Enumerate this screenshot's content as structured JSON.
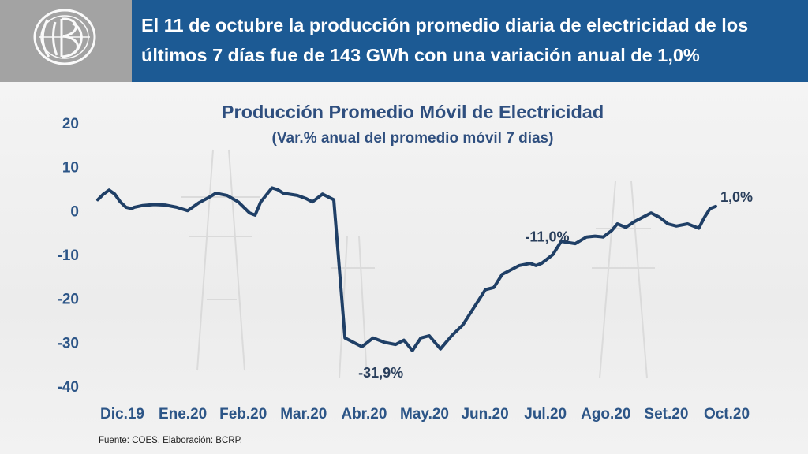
{
  "header": {
    "headline": "El 11 de octubre la producción promedio diaria de electricidad de los últimos 7 días fue de 143 GWh con una variación anual de 1,0%"
  },
  "logo": {
    "icon": "bcrp-monogram-icon"
  },
  "source": "Fuente: COES. Elaboración: BCRP.",
  "chart_data": {
    "type": "line",
    "title": "Producción Promedio Móvil de Electricidad",
    "subtitle": "(Var.% anual del promedio móvil 7 días)",
    "xlabel": "",
    "ylabel": "",
    "ylim": [
      -40,
      20
    ],
    "yticks": [
      20,
      10,
      0,
      -10,
      -20,
      -30,
      -40
    ],
    "xlim": [
      0,
      11
    ],
    "xticks": [
      "Dic.19",
      "Ene.20",
      "Feb.20",
      "Mar.20",
      "Abr.20",
      "May.20",
      "Jun.20",
      "Jul.20",
      "Ago.20",
      "Set.20",
      "Oct.20"
    ],
    "grid": false,
    "legend": "none",
    "line_color": "#1f3f66",
    "series": [
      {
        "x": [
          0.0,
          0.1,
          0.2,
          0.3,
          0.4,
          0.5,
          0.6,
          0.65,
          0.8,
          1.0,
          1.2,
          1.4,
          1.6,
          1.8,
          2.0,
          2.1,
          2.3,
          2.5,
          2.7,
          2.8,
          2.9,
          3.1,
          3.2,
          3.3,
          3.55,
          3.7,
          3.82,
          4.0,
          4.2,
          4.4,
          4.7,
          4.9,
          5.1,
          5.3,
          5.45,
          5.6,
          5.75,
          5.9,
          6.1,
          6.2,
          6.3,
          6.5,
          6.7,
          6.9,
          7.05,
          7.2,
          7.35,
          7.5,
          7.7,
          7.8,
          7.9,
          8.0,
          8.1,
          8.25,
          8.5,
          8.7,
          8.85,
          9.0,
          9.15,
          9.25,
          9.4,
          9.55,
          9.7,
          9.85,
          10.0,
          10.15,
          10.3,
          10.5,
          10.6,
          10.7,
          10.8,
          10.9,
          11.0
        ],
        "values": [
          2.5,
          3.8,
          4.7,
          3.8,
          2.0,
          0.8,
          0.5,
          0.8,
          1.2,
          1.4,
          1.3,
          0.8,
          0.0,
          1.8,
          3.2,
          4.0,
          3.5,
          2.0,
          -0.5,
          -1.0,
          2.0,
          5.2,
          4.8,
          4.0,
          3.5,
          2.8,
          2.0,
          3.8,
          2.5,
          -29.0,
          -31.0,
          -29.0,
          -30.0,
          -30.5,
          -29.5,
          -31.9,
          -29.0,
          -28.5,
          -31.5,
          -30.0,
          -28.5,
          -26.0,
          -22.0,
          -18.0,
          -17.5,
          -14.5,
          -13.5,
          -12.5,
          -12.0,
          -12.5,
          -12.0,
          -11.0,
          -10.0,
          -7.0,
          -7.5,
          -6.0,
          -5.8,
          -6.0,
          -4.5,
          -3.0,
          -3.8,
          -2.5,
          -1.5,
          -0.5,
          -1.5,
          -3.0,
          -3.5,
          -3.0,
          -3.5,
          -4.0,
          -1.5,
          0.5,
          1.0
        ]
      }
    ],
    "annotations": [
      {
        "text": "1,0%",
        "x": 11.0,
        "y": 1.0
      },
      {
        "text": "-11,0%",
        "x": 8.0,
        "y": -11.0
      },
      {
        "text": "-31,9%",
        "x": 5.6,
        "y": -31.9
      }
    ]
  }
}
